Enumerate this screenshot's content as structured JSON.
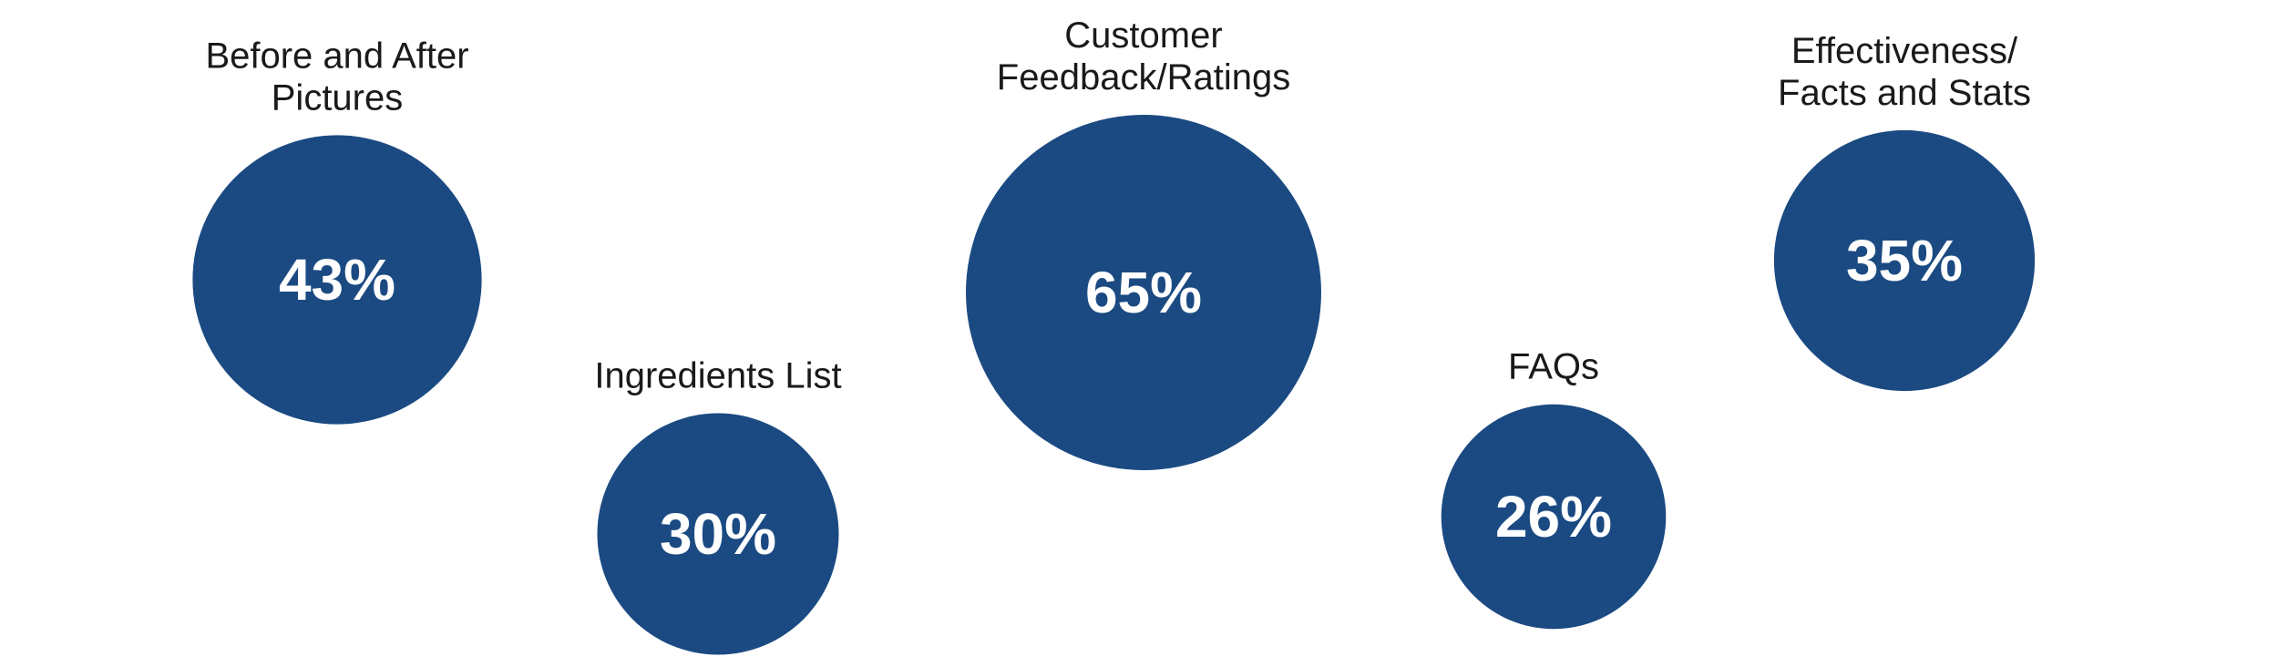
{
  "chart_data": {
    "type": "bubble",
    "colors": {
      "bubble": "#1b4a82",
      "value_text": "#ffffff",
      "label_text": "#1a1a1a"
    },
    "items": [
      {
        "label_lines": [
          "Before and After",
          "Pictures"
        ],
        "value": 43,
        "value_label": "43%"
      },
      {
        "label_lines": [
          "Ingredients List"
        ],
        "value": 30,
        "value_label": "30%"
      },
      {
        "label_lines": [
          "Customer",
          "Feedback/Ratings"
        ],
        "value": 65,
        "value_label": "65%"
      },
      {
        "label_lines": [
          "FAQs"
        ],
        "value": 26,
        "value_label": "26%"
      },
      {
        "label_lines": [
          "Effectiveness/",
          "Facts and Stats"
        ],
        "value": 35,
        "value_label": "35%"
      }
    ]
  }
}
